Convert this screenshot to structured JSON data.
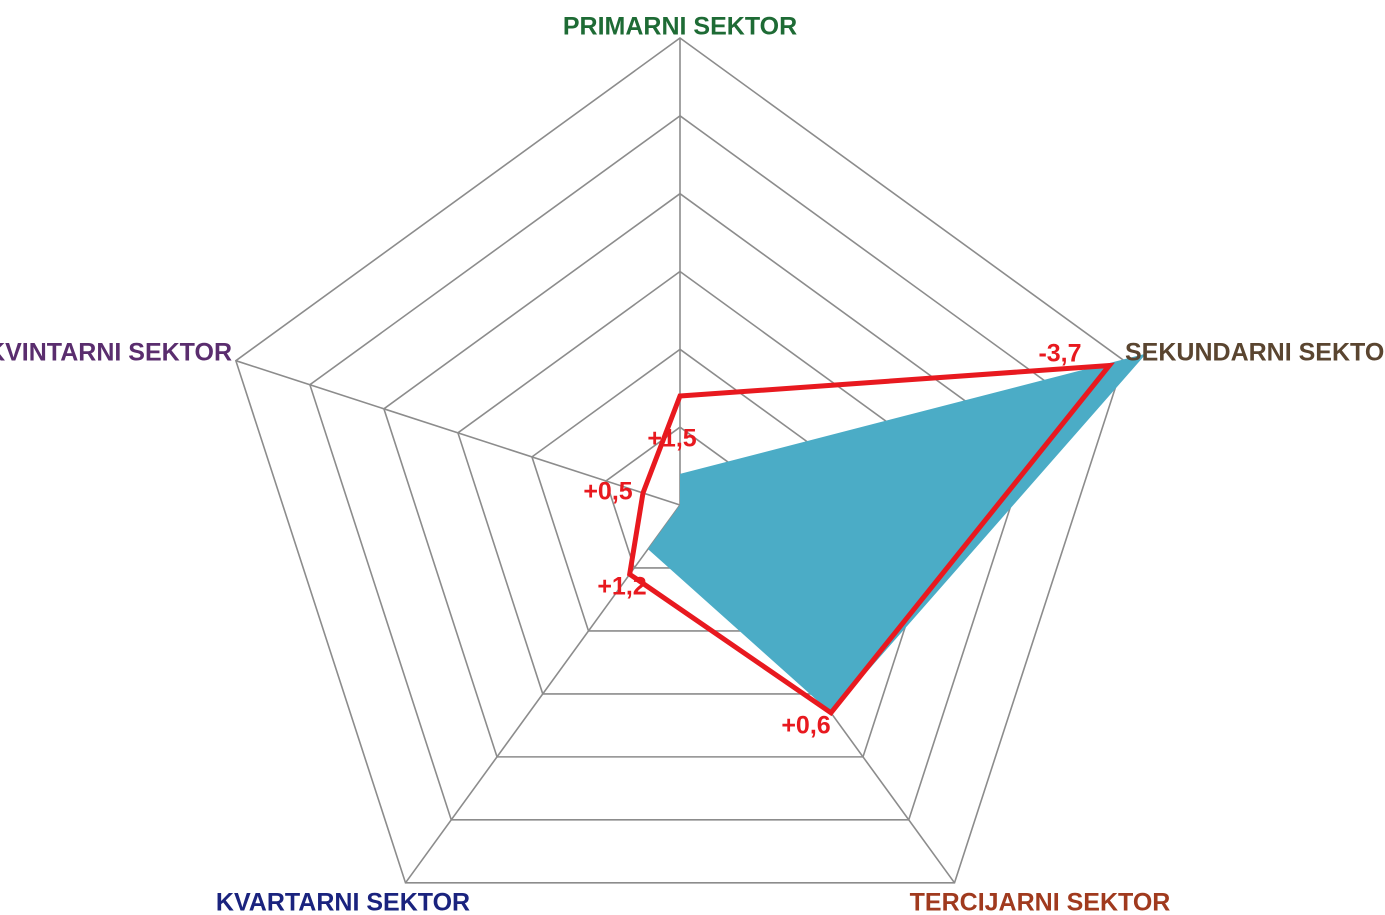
{
  "chart_data": {
    "type": "radar",
    "categories": [
      "PRIMARNI SEKTOR",
      "SEKUNDARNI SEKTOR",
      "TERCIJARNI SEKTOR",
      "KVARTARNI SEKTOR",
      "KVINTARNI SEKTOR"
    ],
    "category_colors": [
      "#1e6b35",
      "#5a4530",
      "#a03a1e",
      "#1a237e",
      "#5a2d6e"
    ],
    "rings": 6,
    "grid": true,
    "series": [
      {
        "values": [
          0.4,
          6.3,
          3.3,
          0.7,
          0.0
        ],
        "color": "#4bacc6",
        "style": "filled"
      },
      {
        "values": [
          1.4,
          5.8,
          3.3,
          1.1,
          0.5
        ],
        "color": "#e8191f",
        "style": "outline"
      }
    ],
    "annotations": [
      "+1,5",
      "-3,7",
      "+0,6",
      "+1,2",
      "+0,5"
    ]
  }
}
